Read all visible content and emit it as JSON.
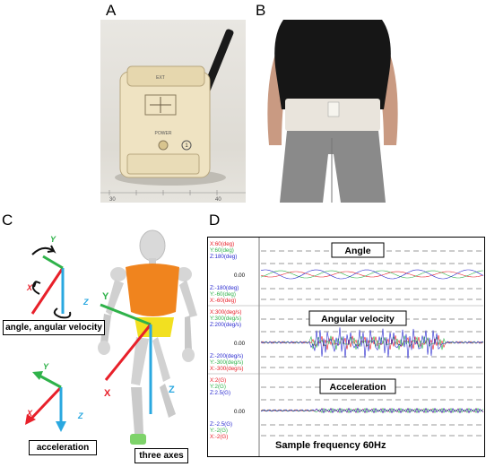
{
  "panels": {
    "a": "A",
    "b": "B",
    "c": "C",
    "d": "D"
  },
  "panel_a": {
    "device_labels": [
      "EXT",
      "POWER",
      "1"
    ],
    "ruler_marks": [
      "30",
      "40"
    ]
  },
  "panel_c": {
    "gyro_axes": {
      "x": "X",
      "y": "Y",
      "z": "Z"
    },
    "gyro_caption": "angle,  angular velocity",
    "acc_axes": {
      "x": "X",
      "y": "Y",
      "z": "Z"
    },
    "acc_caption": "acceleration",
    "body_axes": {
      "x": "X",
      "y": "Y",
      "z": "Z"
    },
    "body_caption": "three axes",
    "colors": {
      "x": "#e8202a",
      "y": "#2fb24a",
      "z": "#2aa8e0",
      "torso": "#f0841e",
      "hip": "#f2e020"
    }
  },
  "panel_d": {
    "colors": {
      "x": "#e8202a",
      "y": "#2fb24a",
      "z": "#2a2ad0"
    },
    "sections": [
      {
        "title": "Angle",
        "top_labels": [
          "X:60(deg)",
          "Y:60(deg)",
          "Z:180(deg)"
        ],
        "zero": "0.00",
        "bottom_labels": [
          "Z:-180(deg)",
          "Y:-60(deg)",
          "X:-60(deg)"
        ]
      },
      {
        "title": "Angular velocity",
        "top_labels": [
          "X:300(deg/s)",
          "Y:300(deg/s)",
          "Z:200(deg/s)"
        ],
        "zero": "0.00",
        "bottom_labels": [
          "Z:-200(deg/s)",
          "Y:-300(deg/s)",
          "X:-300(deg/s)"
        ]
      },
      {
        "title": "Acceleration",
        "top_labels": [
          "X:2(G)",
          "Y:2(G)",
          "Z:2.5(G)"
        ],
        "zero": "0.00",
        "bottom_labels": [
          "Z:-2.5(G)",
          "Y:-2(G)",
          "X:-2(G)"
        ]
      }
    ],
    "footer": "Sample frequency  60Hz"
  }
}
